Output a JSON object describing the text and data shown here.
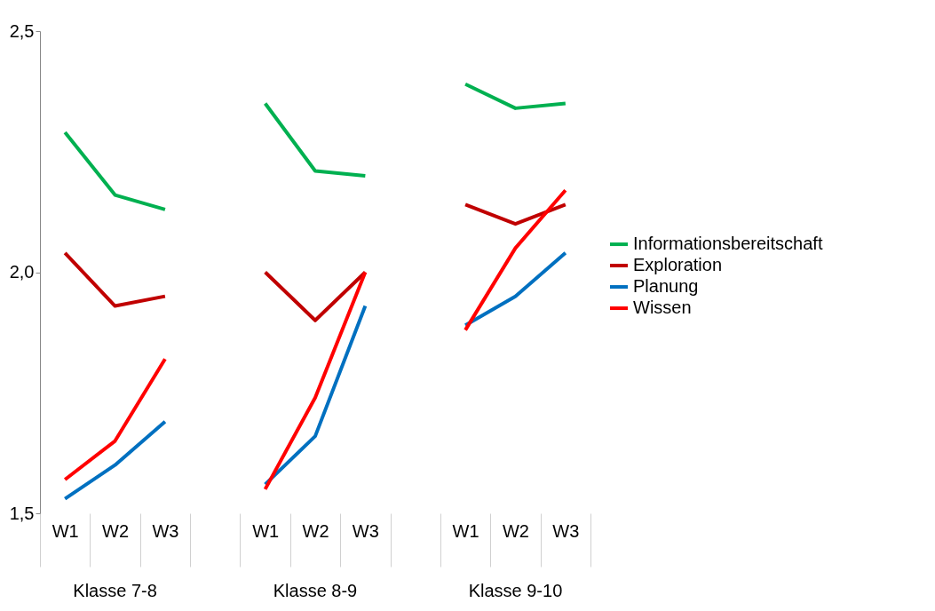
{
  "chart_data": {
    "type": "line",
    "categories": [
      "W1",
      "W2",
      "W3",
      null,
      "W1",
      "W2",
      "W3",
      null,
      "W1",
      "W2",
      "W3"
    ],
    "series": [
      {
        "name": "Informationsbereitschaft",
        "color": "#00b050",
        "values": [
          2.29,
          2.16,
          2.13,
          null,
          2.35,
          2.21,
          2.2,
          null,
          2.39,
          2.34,
          2.35
        ]
      },
      {
        "name": "Exploration",
        "color": "#c00000",
        "values": [
          2.04,
          1.93,
          1.95,
          null,
          2.0,
          1.9,
          2.0,
          null,
          2.14,
          2.1,
          2.14
        ]
      },
      {
        "name": "Planung",
        "color": "#0070c0",
        "values": [
          1.53,
          1.6,
          1.69,
          null,
          1.56,
          1.66,
          1.93,
          null,
          1.89,
          1.95,
          2.04
        ]
      },
      {
        "name": "Wissen",
        "color": "#ff0000",
        "values": [
          1.57,
          1.65,
          1.82,
          null,
          1.55,
          1.74,
          2.0,
          null,
          1.88,
          2.05,
          2.17
        ]
      }
    ],
    "ylim": [
      1.5,
      2.5
    ],
    "yticks": [
      {
        "value": 1.5,
        "label": "1,5"
      },
      {
        "value": 2.0,
        "label": "2,0"
      },
      {
        "value": 2.5,
        "label": "2,5"
      }
    ],
    "annotations": [
      "Klasse 7-8",
      "Klasse 8-9",
      "Klasse 9-10"
    ],
    "grid": false,
    "legend": "right",
    "marker": "none",
    "line_style": "solid"
  }
}
